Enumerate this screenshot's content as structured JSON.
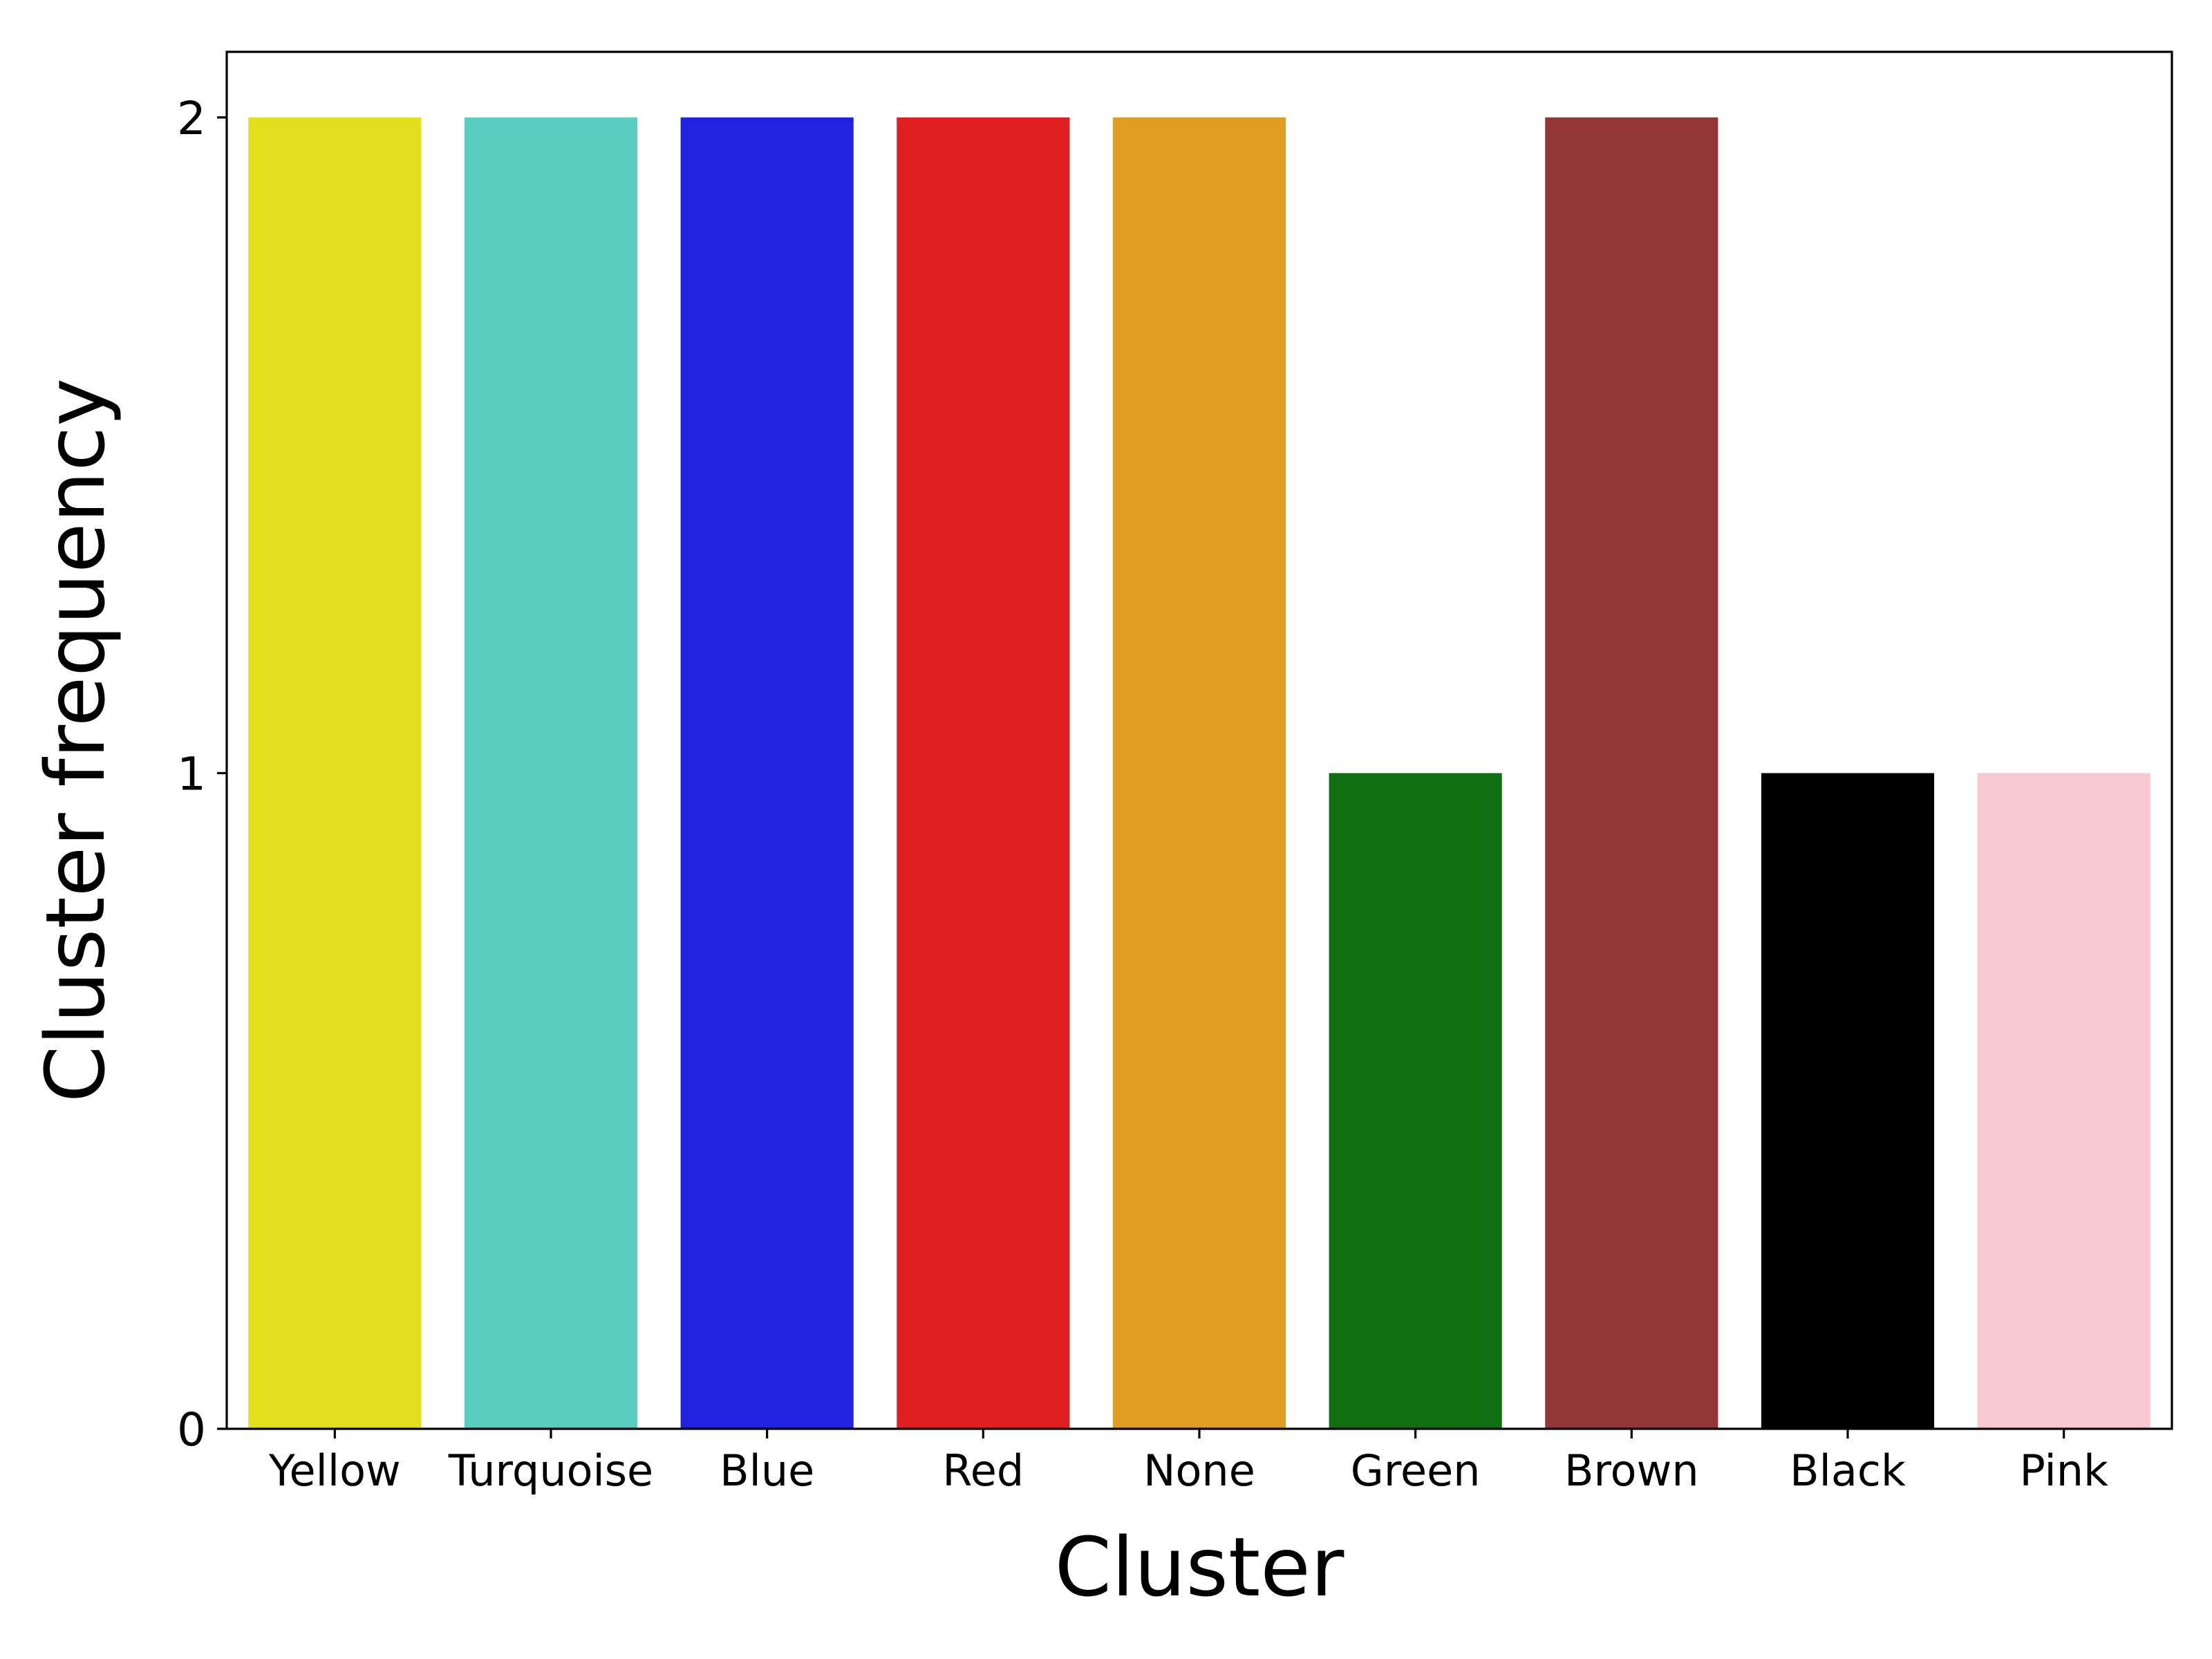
{
  "chart_data": {
    "type": "bar",
    "title": "",
    "xlabel": "Cluster",
    "ylabel": "Cluster frequency",
    "categories": [
      "Yellow",
      "Turquoise",
      "Blue",
      "Red",
      "None",
      "Green",
      "Brown",
      "Black",
      "Pink"
    ],
    "values": [
      2,
      2,
      2,
      2,
      2,
      1,
      2,
      1,
      1
    ],
    "colors": [
      "#e0e01e",
      "#59cdc0",
      "#2121e0",
      "#e01f23",
      "#e09d21",
      "#107011",
      "#933638",
      "#000000",
      "#f7c8d0"
    ],
    "yticks": [
      0,
      1,
      2
    ],
    "ylim": [
      0,
      2.1
    ],
    "grid": false,
    "legend": "none"
  }
}
